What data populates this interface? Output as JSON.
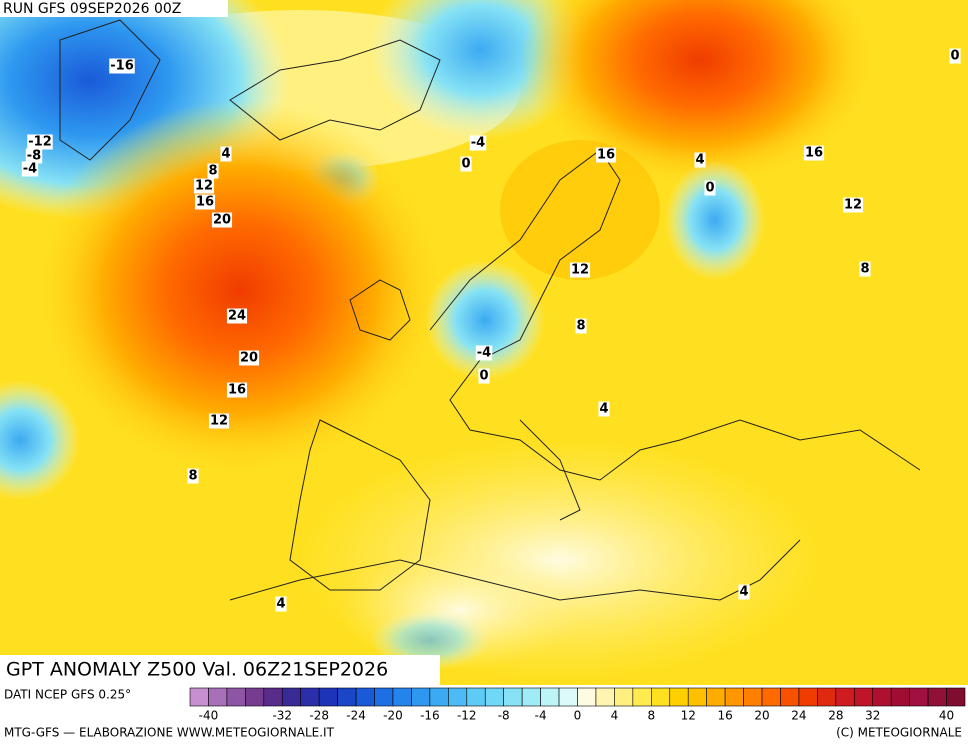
{
  "header": {
    "run": "RUN GFS 09SEP2026 00Z",
    "title": "GPT ANOMALY Z500 Val. 06Z21SEP2026"
  },
  "footer": {
    "source": "DATI NCEP GFS 0.25°",
    "credit": "MTG-GFS — ELABORAZIONE WWW.METEOGIORNALE.IT",
    "copyright": "(C) METEOGIORNALE"
  },
  "colorbar": {
    "range": [
      -42,
      42
    ],
    "colors": [
      "#c58fd0",
      "#a870b8",
      "#8f55a5",
      "#763c90",
      "#5a2c8a",
      "#3a2a96",
      "#2a2ea8",
      "#1d34b8",
      "#1a46c8",
      "#1a5ad8",
      "#1e6ee4",
      "#2484ec",
      "#2e98f0",
      "#3caaf2",
      "#4cbaf4",
      "#5ecbf6",
      "#70d8f6",
      "#86e2f4",
      "#a0ecf6",
      "#bcf4f8",
      "#dcfafa",
      "#fffbe0",
      "#fff5b0",
      "#fff080",
      "#ffea50",
      "#ffe020",
      "#ffd000",
      "#ffc000",
      "#ffac00",
      "#ff9800",
      "#ff8000",
      "#ff6a00",
      "#f85200",
      "#f03c00",
      "#e02a10",
      "#d01c20",
      "#c01428",
      "#b01030",
      "#a00c34",
      "#a01040",
      "#901038",
      "#800c30"
    ],
    "labels": [
      -40,
      -32,
      -28,
      -24,
      -20,
      -16,
      -12,
      -8,
      -4,
      0,
      4,
      8,
      12,
      16,
      20,
      24,
      28,
      32,
      40
    ]
  },
  "contour_labels": [
    "-16",
    "-12",
    "-8",
    "-4",
    "4",
    "8",
    "12",
    "16",
    "20",
    "24",
    "20",
    "16",
    "12",
    "8",
    "-4",
    "0",
    "16",
    "4",
    "0",
    "16",
    "12",
    "8",
    "12",
    "8",
    "-4",
    "0",
    "4",
    "4",
    "4",
    "0"
  ]
}
